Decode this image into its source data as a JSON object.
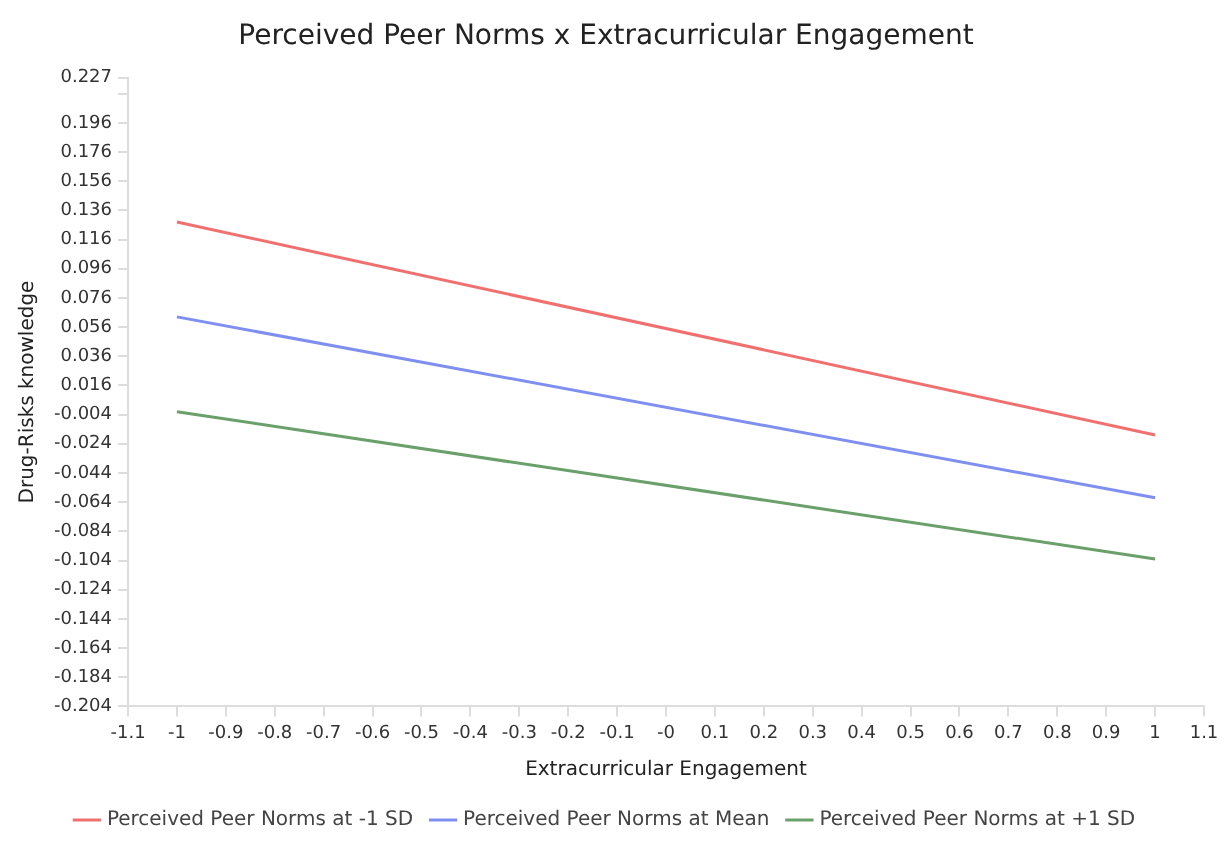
{
  "chart_data": {
    "type": "line",
    "title": "Perceived Peer Norms x Extracurricular Engagement",
    "xlabel": "Extracurricular Engagement",
    "ylabel": "Drug-Risks knowledge",
    "x": [
      -1,
      1
    ],
    "series": [
      {
        "name": "Perceived Peer Norms at -1 SD",
        "color": "#f07070",
        "values": [
          0.128,
          -0.018
        ]
      },
      {
        "name": "Perceived Peer Norms at Mean",
        "color": "#7f8ff0",
        "values": [
          0.063,
          -0.061
        ]
      },
      {
        "name": "Perceived Peer Norms at +1 SD",
        "color": "#6aa06a",
        "values": [
          -0.002,
          -0.103
        ]
      }
    ],
    "xlim": [
      -1.1,
      1.1
    ],
    "xticks": [
      -1.1,
      -1,
      -0.9,
      -0.8,
      -0.7,
      -0.6,
      -0.5,
      -0.4,
      -0.3,
      -0.2,
      -0.1,
      {
        "value": 0,
        "label": "-0"
      },
      0.1,
      0.2,
      0.3,
      0.4,
      0.5,
      0.6,
      0.7,
      0.8,
      0.9,
      1,
      1.1
    ],
    "ylim": [
      -0.204,
      0.227
    ],
    "yticks": [
      -0.204,
      -0.184,
      -0.164,
      -0.144,
      -0.124,
      -0.104,
      -0.084,
      -0.064,
      -0.044,
      -0.024,
      -0.004,
      0.016,
      0.036,
      0.056,
      0.076,
      0.096,
      0.116,
      0.136,
      0.156,
      0.176,
      0.196,
      {
        "value": 0.216,
        "label": null
      },
      0.227
    ],
    "grid": false,
    "legend": "bottom",
    "marker": "none",
    "line_style": "solid"
  }
}
